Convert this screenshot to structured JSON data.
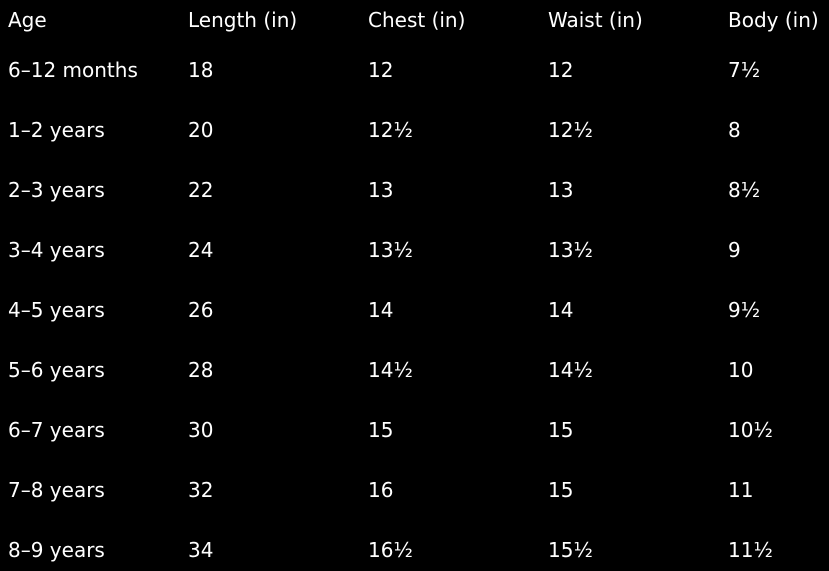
{
  "table": {
    "headers": [
      "Age",
      "Length (in)",
      "Chest (in)",
      "Waist (in)",
      "Body (in)"
    ],
    "rows": [
      [
        "6–12 months",
        "18",
        "12",
        "12",
        "7½"
      ],
      [
        "1–2 years",
        "20",
        "12½",
        "12½",
        "8"
      ],
      [
        "2–3 years",
        "22",
        "13",
        "13",
        "8½"
      ],
      [
        "3–4 years",
        "24",
        "13½",
        "13½",
        "9"
      ],
      [
        "4–5 years",
        "26",
        "14",
        "14",
        "9½"
      ],
      [
        "5–6 years",
        "28",
        "14½",
        "14½",
        "10"
      ],
      [
        "6–7 years",
        "30",
        "15",
        "15",
        "10½"
      ],
      [
        "7–8 years",
        "32",
        "16",
        "15",
        "11"
      ],
      [
        "8–9 years",
        "34",
        "16½",
        "15½",
        "11½"
      ]
    ]
  }
}
